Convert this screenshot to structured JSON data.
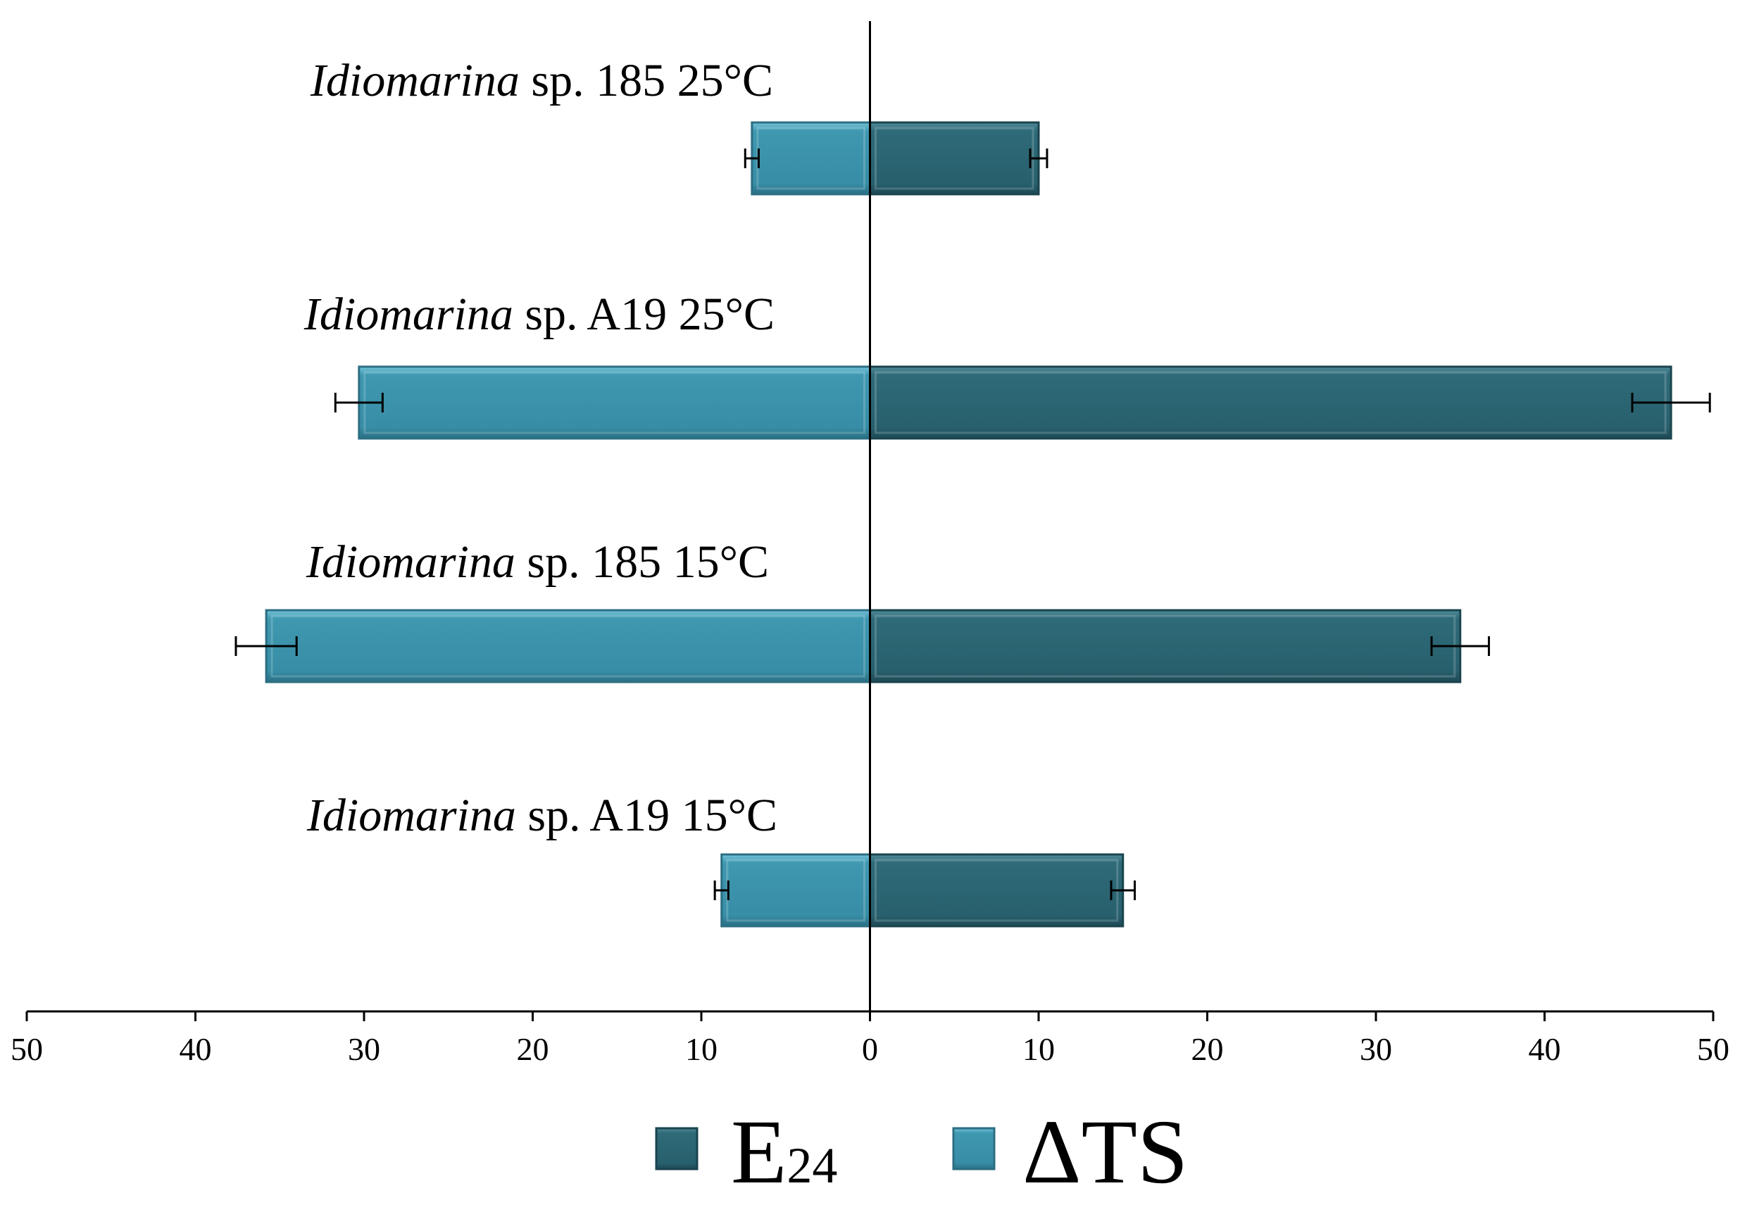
{
  "chart_data": {
    "type": "bar",
    "orientation": "horizontal",
    "layout": "diverging",
    "categories": [
      {
        "genus": "Idiomarina",
        "rest": " sp. 185 25°C"
      },
      {
        "genus": "Idiomarina",
        "rest": " sp. A19 25°C"
      },
      {
        "genus": "Idiomarina",
        "rest": " sp. 185 15°C"
      },
      {
        "genus": "Idiomarina",
        "rest": " sp. A19 15°C"
      }
    ],
    "series": [
      {
        "name": "E24",
        "name_main": "E",
        "name_sub": "24",
        "side": "right",
        "color": "#2a6270",
        "values": [
          10,
          47.5,
          35,
          15
        ],
        "errors": [
          0.5,
          2.3,
          1.7,
          0.7
        ]
      },
      {
        "name": "ΔTS",
        "side": "left",
        "color": "#3a90a8",
        "values": [
          7,
          30.3,
          35.8,
          8.8
        ],
        "errors": [
          0.4,
          1.4,
          1.8,
          0.4
        ]
      }
    ],
    "xlim": [
      -50,
      50
    ],
    "x_ticks": [
      -50,
      -40,
      -30,
      -20,
      -10,
      0,
      10,
      20,
      30,
      40,
      50
    ],
    "x_tick_labels": [
      "50",
      "40",
      "30",
      "20",
      "10",
      "0",
      "10",
      "20",
      "30",
      "40",
      "50"
    ],
    "title": "",
    "xlabel": "",
    "ylabel": "",
    "grid": false,
    "legend_position": "bottom-center"
  }
}
